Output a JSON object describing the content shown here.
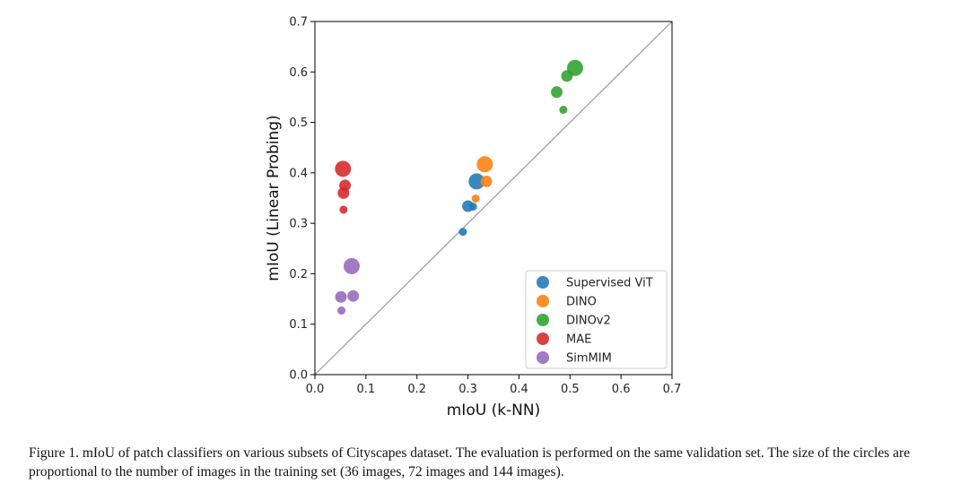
{
  "chart_data": {
    "type": "scatter",
    "xlabel": "mIoU (k-NN)",
    "ylabel": "mIoU (Linear Probing)",
    "xlim": [
      0.0,
      0.7
    ],
    "ylim": [
      0.0,
      0.7
    ],
    "xticks": [
      "0.0",
      "0.1",
      "0.2",
      "0.3",
      "0.4",
      "0.5",
      "0.6",
      "0.7"
    ],
    "yticks": [
      "0.0",
      "0.1",
      "0.2",
      "0.3",
      "0.4",
      "0.5",
      "0.6",
      "0.7"
    ],
    "diagonal": true,
    "legend_position": "lower-right",
    "size_note": "circle size proportional to number of training images",
    "sizes": [
      36,
      72,
      144
    ],
    "series": [
      {
        "name": "Supervised ViT",
        "color": "#1f77b4",
        "points": [
          {
            "x": 0.29,
            "y": 0.283,
            "images": 36
          },
          {
            "x": 0.31,
            "y": 0.333,
            "images": 36
          },
          {
            "x": 0.3,
            "y": 0.334,
            "images": 72
          },
          {
            "x": 0.317,
            "y": 0.383,
            "images": 144
          }
        ]
      },
      {
        "name": "DINO",
        "color": "#ff7f0e",
        "points": [
          {
            "x": 0.315,
            "y": 0.349,
            "images": 36
          },
          {
            "x": 0.336,
            "y": 0.383,
            "images": 72
          },
          {
            "x": 0.333,
            "y": 0.417,
            "images": 144
          }
        ]
      },
      {
        "name": "DINOv2",
        "color": "#2ca02c",
        "points": [
          {
            "x": 0.487,
            "y": 0.525,
            "images": 36
          },
          {
            "x": 0.474,
            "y": 0.56,
            "images": 72
          },
          {
            "x": 0.494,
            "y": 0.592,
            "images": 72
          },
          {
            "x": 0.51,
            "y": 0.608,
            "images": 144
          }
        ]
      },
      {
        "name": "MAE",
        "color": "#d62728",
        "points": [
          {
            "x": 0.056,
            "y": 0.327,
            "images": 36
          },
          {
            "x": 0.056,
            "y": 0.36,
            "images": 72
          },
          {
            "x": 0.059,
            "y": 0.375,
            "images": 72
          },
          {
            "x": 0.055,
            "y": 0.408,
            "images": 144
          }
        ]
      },
      {
        "name": "SimMIM",
        "color": "#9467bd",
        "points": [
          {
            "x": 0.052,
            "y": 0.127,
            "images": 36
          },
          {
            "x": 0.051,
            "y": 0.154,
            "images": 72
          },
          {
            "x": 0.075,
            "y": 0.156,
            "images": 72
          },
          {
            "x": 0.072,
            "y": 0.215,
            "images": 144
          }
        ]
      }
    ]
  },
  "caption": "Figure 1. mIoU of patch classifiers on various subsets of Cityscapes dataset. The evaluation is performed on the same validation set. The size of the circles are proportional to the number of images in the training set (36 images, 72 images and 144 images)."
}
